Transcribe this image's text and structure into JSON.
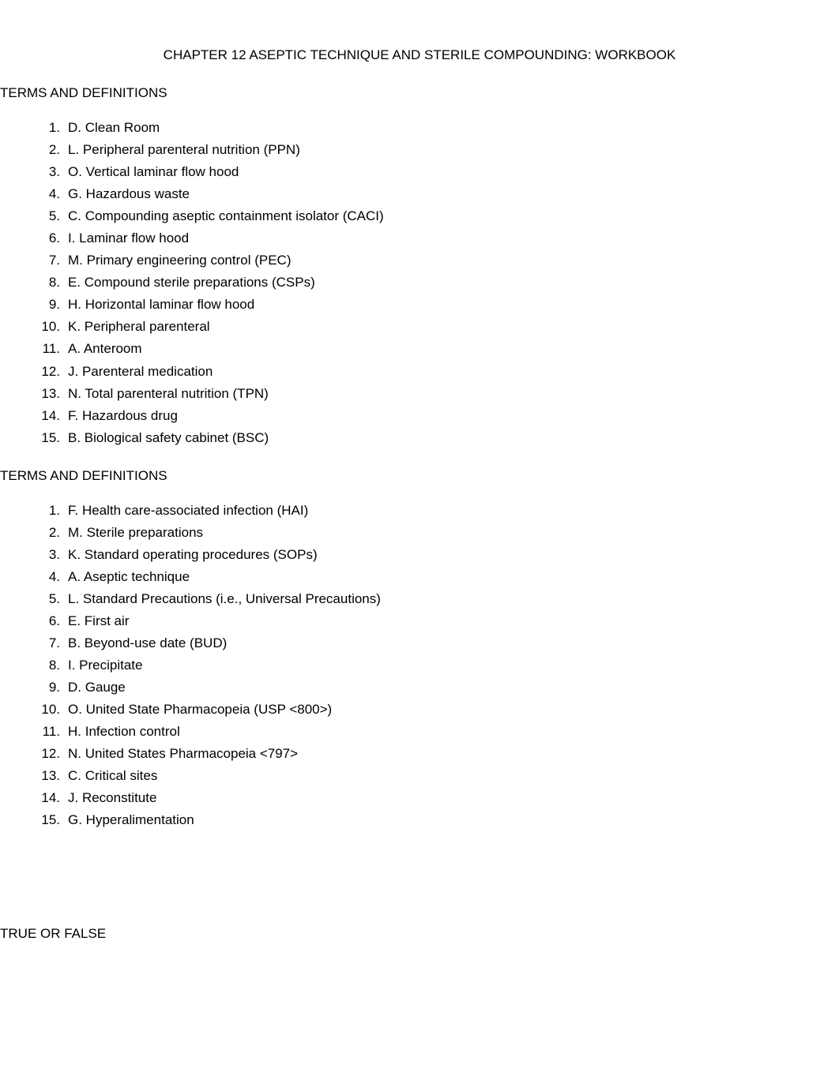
{
  "title": "CHAPTER 12 ASEPTIC TECHNIQUE AND STERILE COMPOUNDING: WORKBOOK",
  "section1": {
    "heading": "TERMS AND DEFINITIONS",
    "items": [
      {
        "num": "1.",
        "text": "D. Clean Room"
      },
      {
        "num": "2.",
        "text": "L. Peripheral parenteral nutrition (PPN)"
      },
      {
        "num": "3.",
        "text": "O. Vertical laminar flow hood"
      },
      {
        "num": "4.",
        "text": "G. Hazardous waste"
      },
      {
        "num": "5.",
        "text": "C. Compounding aseptic containment isolator (CACI)"
      },
      {
        "num": "6.",
        "text": "I. Laminar flow hood"
      },
      {
        "num": "7.",
        "text": "M. Primary engineering control (PEC)"
      },
      {
        "num": "8.",
        "text": "E. Compound sterile preparations (CSPs)"
      },
      {
        "num": "9.",
        "text": "H. Horizontal laminar flow hood"
      },
      {
        "num": "10.",
        "text": "K. Peripheral parenteral"
      },
      {
        "num": "11.",
        "text": "A. Anteroom"
      },
      {
        "num": "12.",
        "text": "J. Parenteral medication"
      },
      {
        "num": "13.",
        "text": "N. Total parenteral nutrition (TPN)"
      },
      {
        "num": "14.",
        "text": "F. Hazardous drug"
      },
      {
        "num": "15.",
        "text": "B. Biological safety cabinet (BSC)"
      }
    ]
  },
  "section2": {
    "heading": "TERMS AND DEFINITIONS",
    "items": [
      {
        "num": "1.",
        "text": "F. Health care-associated infection (HAI)"
      },
      {
        "num": "2.",
        "text": "M. Sterile preparations"
      },
      {
        "num": "3.",
        "text": "K. Standard operating procedures (SOPs)"
      },
      {
        "num": "4.",
        "text": "A. Aseptic technique"
      },
      {
        "num": "5.",
        "text": "L. Standard Precautions (i.e., Universal Precautions)"
      },
      {
        "num": "6.",
        "text": "E. First air"
      },
      {
        "num": "7.",
        "text": "B. Beyond-use date (BUD)"
      },
      {
        "num": "8.",
        "text": "I. Precipitate"
      },
      {
        "num": "9.",
        "text": "D. Gauge"
      },
      {
        "num": "10.",
        "text": "O. United State Pharmacopeia (USP <800>)"
      },
      {
        "num": "11.",
        "text": "H. Infection control"
      },
      {
        "num": "12.",
        "text": "N. United States Pharmacopeia  <797>"
      },
      {
        "num": "13.",
        "text": "C. Critical sites"
      },
      {
        "num": "14.",
        "text": "J. Reconstitute"
      },
      {
        "num": "15.",
        "text": "G. Hyperalimentation"
      }
    ]
  },
  "footer": {
    "heading": "TRUE OR FALSE"
  },
  "styling": {
    "background_color": "#ffffff",
    "text_color": "#000000",
    "font_family": "Arial",
    "title_fontsize": 17,
    "heading_fontsize": 17,
    "list_fontsize": 17,
    "line_height": 1.65
  }
}
